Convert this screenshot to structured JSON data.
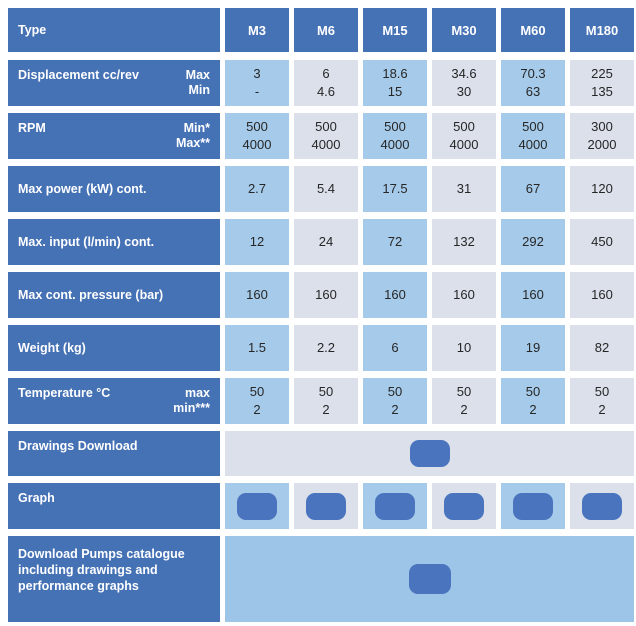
{
  "colors": {
    "label_blue": "#4571b5",
    "button_blue": "#4b74bf",
    "cell_blue": "#a6cbea",
    "cell_gray": "#dbe0eb",
    "catalogue_blue": "#9cc5e8",
    "value_text": "#262626",
    "page_bg": "#ffffff"
  },
  "header": {
    "type_label": "Type",
    "columns": [
      "M3",
      "M6",
      "M15",
      "M30",
      "M60",
      "M180"
    ]
  },
  "spec_rows": [
    {
      "id": "displacement",
      "label": "Displacement cc/rev",
      "sublabels": [
        "Max",
        "Min"
      ],
      "values": [
        [
          "3",
          "-"
        ],
        [
          "6",
          "4.6"
        ],
        [
          "18.6",
          "15"
        ],
        [
          "34.6",
          "30"
        ],
        [
          "70.3",
          "63"
        ],
        [
          "225",
          "135"
        ]
      ]
    },
    {
      "id": "rpm",
      "label": "RPM",
      "sublabels": [
        "Min*",
        "Max**"
      ],
      "values": [
        [
          "500",
          "4000"
        ],
        [
          "500",
          "4000"
        ],
        [
          "500",
          "4000"
        ],
        [
          "500",
          "4000"
        ],
        [
          "500",
          "4000"
        ],
        [
          "300",
          "2000"
        ]
      ]
    },
    {
      "id": "max-power",
      "label": "Max power (kW) cont.",
      "sublabels": [],
      "values": [
        "2.7",
        "5.4",
        "17.5",
        "31",
        "67",
        "120"
      ]
    },
    {
      "id": "max-input",
      "label": "Max. input (l/min) cont.",
      "sublabels": [],
      "values": [
        "12",
        "24",
        "72",
        "132",
        "292",
        "450"
      ]
    },
    {
      "id": "max-pressure",
      "label": "Max cont. pressure (bar)",
      "sublabels": [],
      "values": [
        "160",
        "160",
        "160",
        "160",
        "160",
        "160"
      ]
    },
    {
      "id": "weight",
      "label": "Weight (kg)",
      "sublabels": [],
      "values": [
        "1.5",
        "2.2",
        "6",
        "10",
        "19",
        "82"
      ]
    },
    {
      "id": "temperature",
      "label": "Temperature °C",
      "sublabels": [
        "max",
        "min***"
      ],
      "values": [
        [
          "50",
          "2"
        ],
        [
          "50",
          "2"
        ],
        [
          "50",
          "2"
        ],
        [
          "50",
          "2"
        ],
        [
          "50",
          "2"
        ],
        [
          "50",
          "2"
        ]
      ]
    }
  ],
  "action_rows": [
    {
      "id": "drawings-download",
      "label": "Drawings Download",
      "layout": "merged",
      "background": "gray",
      "button_count": 1
    },
    {
      "id": "graph",
      "label": "Graph",
      "layout": "per-column",
      "background": "alternating",
      "button_count": 6
    },
    {
      "id": "catalogue-download",
      "label": "Download Pumps catalogue including drawings and performance graphs",
      "layout": "merged",
      "background": "catalogue-blue",
      "button_count": 1
    }
  ]
}
